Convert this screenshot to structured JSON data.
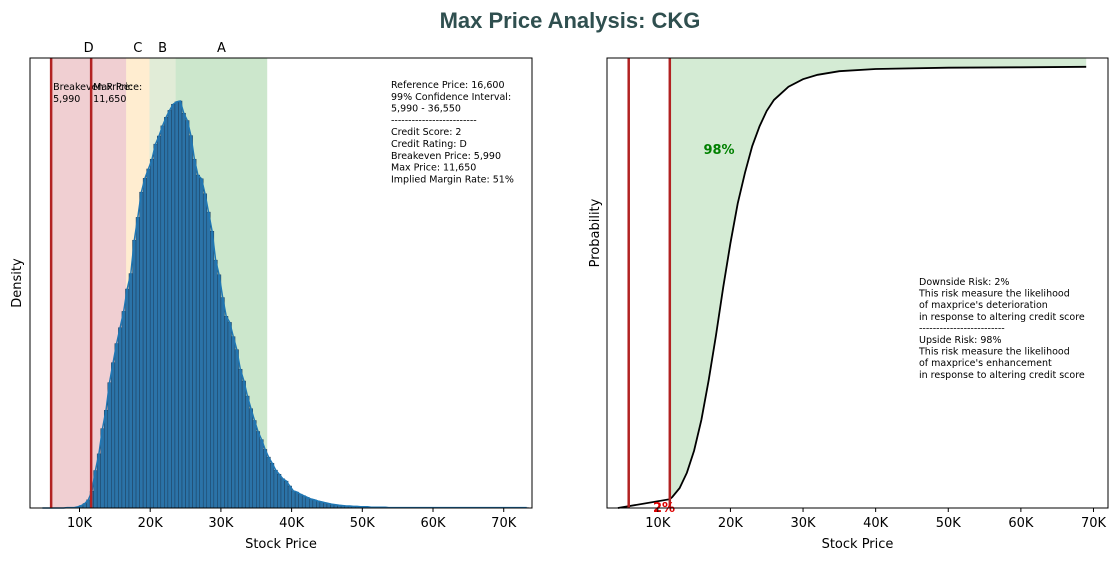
{
  "title": "Max Price Analysis: CKG",
  "colors": {
    "title": "#2f4f4f",
    "zone_D": "#d9888f",
    "zone_C": "#ffd28a",
    "zone_B": "#b5cf9a",
    "zone_A": "#7fc27f",
    "line_red": "#b22222",
    "bar": "#2b73a8",
    "kde": "#1f77b4",
    "cdf": "#000000",
    "upside_fill": "#a9d8a9",
    "pct_up": "#008000",
    "pct_down": "#dd0000"
  },
  "chart_data": [
    {
      "type": "bar",
      "subtype": "histogram-with-kde",
      "xlabel": "Stock Price",
      "ylabel": "Density",
      "xlim": [
        3000,
        74000
      ],
      "x_ticks": [
        10000,
        20000,
        30000,
        40000,
        50000,
        60000,
        70000
      ],
      "x_tick_labels": [
        "10K",
        "20K",
        "30K",
        "40K",
        "50K",
        "60K",
        "70K"
      ],
      "y_ticks_shown": false,
      "zones": [
        {
          "label": "D",
          "from": 5990,
          "to": 16600,
          "color_key": "zone_D",
          "label_color": "#b22222"
        },
        {
          "label": "C",
          "from": 16600,
          "to": 19900,
          "color_key": "zone_C",
          "label_color": "#ff8c00"
        },
        {
          "label": "B",
          "from": 19900,
          "to": 23600,
          "color_key": "zone_B",
          "label_color": "#6b8e23"
        },
        {
          "label": "A",
          "from": 23600,
          "to": 36550,
          "color_key": "zone_A",
          "label_color": "#228b22"
        }
      ],
      "vlines": [
        {
          "x": 5990,
          "label": "Breakeven Price:",
          "value_label": "5,990"
        },
        {
          "x": 11650,
          "label": "Max Price:",
          "value_label": "11,650"
        }
      ],
      "histogram": {
        "bin_start": 4500,
        "bin_width": 500,
        "density": [
          0.0,
          0.0,
          0.0,
          0.0,
          0.0,
          0.0,
          0.0,
          0.001,
          0.001,
          0.001,
          0.003,
          0.006,
          0.011,
          0.02,
          0.041,
          0.092,
          0.133,
          0.195,
          0.24,
          0.308,
          0.357,
          0.404,
          0.443,
          0.483,
          0.538,
          0.576,
          0.658,
          0.714,
          0.776,
          0.81,
          0.833,
          0.857,
          0.894,
          0.914,
          0.939,
          0.96,
          0.977,
          0.992,
          0.998,
          1.0,
          0.97,
          0.952,
          0.915,
          0.857,
          0.818,
          0.809,
          0.772,
          0.727,
          0.68,
          0.609,
          0.573,
          0.517,
          0.471,
          0.456,
          0.421,
          0.389,
          0.341,
          0.312,
          0.275,
          0.244,
          0.215,
          0.188,
          0.168,
          0.144,
          0.125,
          0.11,
          0.093,
          0.083,
          0.072,
          0.066,
          0.054,
          0.042,
          0.039,
          0.034,
          0.03,
          0.026,
          0.022,
          0.02,
          0.017,
          0.015,
          0.013,
          0.011,
          0.009,
          0.008,
          0.007,
          0.006,
          0.005,
          0.005,
          0.004,
          0.004,
          0.003,
          0.003,
          0.003,
          0.002,
          0.002,
          0.002,
          0.002,
          0.002,
          0.001,
          0.001,
          0.001,
          0.001,
          0.001,
          0.001,
          0.001,
          0.001,
          0.001,
          0.001,
          0.001,
          0.001,
          0.001,
          0.001,
          0.001,
          0.001,
          0.001,
          0.001,
          0.001,
          0.001,
          0.001,
          0.001,
          0.001,
          0.001,
          0.001,
          0.001,
          0.001,
          0.001,
          0.001,
          0.001,
          0.001,
          0.001,
          0.001,
          0.001,
          0.001,
          0.001,
          0.001,
          0.001,
          0.001,
          0.001
        ]
      },
      "annotation": [
        "Reference Price: 16,600",
        "99% Confidence Interval:",
        "5,990 - 36,550",
        "-------------------------",
        "Credit Score: 2",
        "Credit Rating: D",
        "Breakeven Price: 5,990",
        "Max Price: 11,650",
        "Implied Margin Rate: 51%"
      ]
    },
    {
      "type": "line",
      "subtype": "cdf",
      "xlabel": "Stock Price",
      "ylabel": "Probability",
      "xlim": [
        3000,
        72000
      ],
      "ylim": [
        0,
        1.02
      ],
      "x_ticks": [
        10000,
        20000,
        30000,
        40000,
        50000,
        60000,
        70000
      ],
      "x_tick_labels": [
        "10K",
        "20K",
        "30K",
        "40K",
        "50K",
        "60K",
        "70K"
      ],
      "y_ticks_shown": false,
      "vlines": [
        5990,
        11650
      ],
      "cdf": {
        "x": [
          4500,
          11650,
          12000,
          13000,
          14000,
          15000,
          16000,
          17000,
          18000,
          19000,
          20000,
          21000,
          22000,
          23000,
          24000,
          25000,
          26000,
          28000,
          30000,
          32000,
          35000,
          40000,
          50000,
          60000,
          69000
        ],
        "y": [
          0.0,
          0.02,
          0.025,
          0.045,
          0.08,
          0.13,
          0.2,
          0.29,
          0.39,
          0.5,
          0.6,
          0.69,
          0.76,
          0.82,
          0.865,
          0.9,
          0.925,
          0.955,
          0.972,
          0.982,
          0.99,
          0.995,
          0.998,
          0.999,
          1.0
        ]
      },
      "downside_pct_label": "2%",
      "upside_pct_label": "98%",
      "annotation": [
        "Downside Risk: 2%",
        "This risk measure the likelihood",
        "of maxprice's deterioration",
        "in response to altering credit score",
        "-------------------------",
        "Upside Risk: 98%",
        "This risk measure the likelihood",
        "of maxprice's enhancement",
        "in response to altering credit score"
      ]
    }
  ]
}
